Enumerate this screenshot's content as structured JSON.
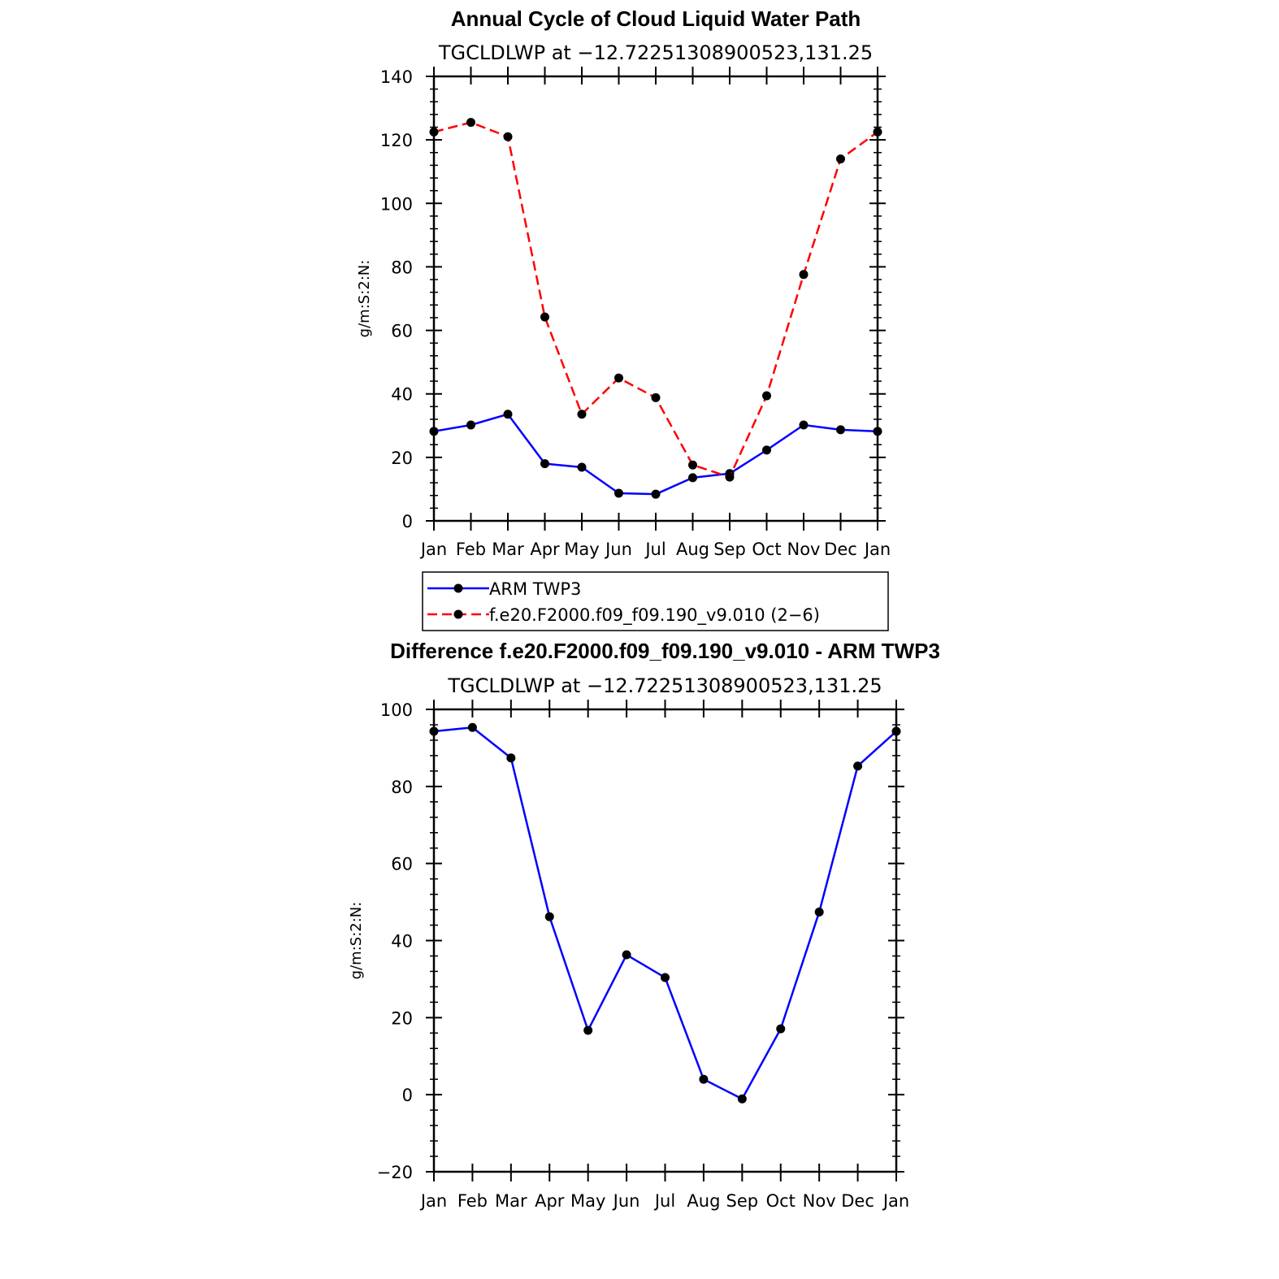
{
  "chart_data": [
    {
      "type": "line",
      "title": "Annual Cycle of Cloud Liquid Water Path",
      "subtitle": "TGCLDLWP  at  −12.72251308900523,131.25",
      "xlabel": "",
      "ylabel": "g/m:S:2:N:",
      "categories": [
        "Jan",
        "Feb",
        "Mar",
        "Apr",
        "May",
        "Jun",
        "Jul",
        "Aug",
        "Sep",
        "Oct",
        "Nov",
        "Dec",
        "Jan"
      ],
      "ylim": [
        0,
        140
      ],
      "yticks": [
        0,
        20,
        40,
        60,
        80,
        100,
        120,
        140
      ],
      "series": [
        {
          "name": "ARM TWP3",
          "color": "#0000ff",
          "dash": "solid",
          "values": [
            28.2,
            30.2,
            33.6,
            18.0,
            16.9,
            8.7,
            8.4,
            13.6,
            14.9,
            22.3,
            30.2,
            28.7,
            28.2
          ]
        },
        {
          "name": "f.e20.F2000.f09_f09.190_v9.010 (2−6)",
          "color": "#ff0000",
          "dash": "dashed",
          "values": [
            122.5,
            125.5,
            121.0,
            64.2,
            33.6,
            45.0,
            38.8,
            17.6,
            13.8,
            39.4,
            77.6,
            114.0,
            122.5
          ]
        }
      ],
      "legend": "bottom"
    },
    {
      "type": "line",
      "title": "Difference f.e20.F2000.f09_f09.190_v9.010 - ARM TWP3",
      "subtitle": "TGCLDLWP  at  −12.72251308900523,131.25",
      "xlabel": "",
      "ylabel": "g/m:S:2:N:",
      "categories": [
        "Jan",
        "Feb",
        "Mar",
        "Apr",
        "May",
        "Jun",
        "Jul",
        "Aug",
        "Sep",
        "Oct",
        "Nov",
        "Dec",
        "Jan"
      ],
      "ylim": [
        -20,
        100
      ],
      "yticks": [
        -20,
        0,
        20,
        40,
        60,
        80,
        100
      ],
      "ytick_labels": [
        "−20",
        "0",
        "20",
        "40",
        "60",
        "80",
        "100"
      ],
      "series": [
        {
          "name": "Difference",
          "color": "#0000ff",
          "dash": "solid",
          "values": [
            94.3,
            95.3,
            87.4,
            46.2,
            16.7,
            36.3,
            30.4,
            4.0,
            -1.1,
            17.1,
            47.4,
            85.3,
            94.3
          ]
        }
      ]
    }
  ]
}
